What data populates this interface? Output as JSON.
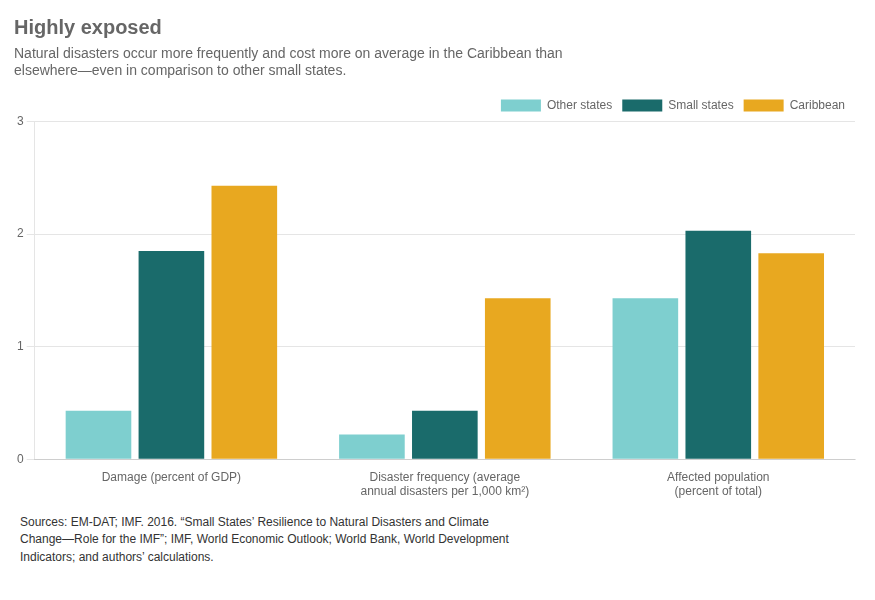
{
  "chart_data": {
    "type": "bar",
    "title": "Highly exposed",
    "subtitle": "Natural disasters occur more frequently and cost more on average in the Caribbean than\nelsewhere—even in comparison to other small states.",
    "categories": [
      "Damage (percent of GDP)",
      "Disaster frequency (average\nannual disasters per 1,000 km²)",
      "Affected population\n(percent of total)"
    ],
    "series": [
      {
        "name": "Other states",
        "color": "#7ecfcf",
        "values": [
          0.43,
          0.22,
          1.43
        ]
      },
      {
        "name": "Small states",
        "color": "#1a6b6b",
        "values": [
          1.85,
          0.43,
          2.03
        ]
      },
      {
        "name": "Caribbean",
        "color": "#e8a820",
        "values": [
          2.43,
          1.43,
          1.83
        ]
      }
    ],
    "ylim": [
      0,
      3.0
    ],
    "yticks": [
      0,
      1,
      2,
      3
    ],
    "grid": true,
    "legend": "upper right",
    "annotations": [
      "Sources: EM-DAT; IMF. 2016. “Small States’ Resilience to Natural Disasters and Climate\nChange—Role for the IMF”; IMF, World Economic Outlook; World Bank, World Development\nIndicators; and authors’ calculations."
    ]
  }
}
